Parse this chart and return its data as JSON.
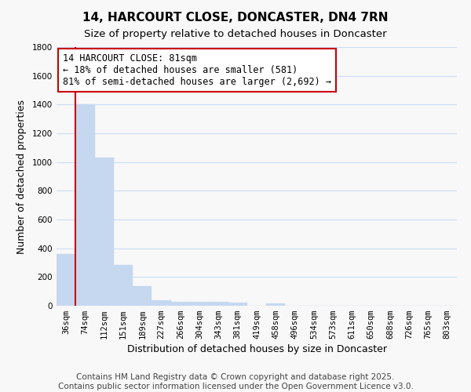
{
  "title": "14, HARCOURT CLOSE, DONCASTER, DN4 7RN",
  "subtitle": "Size of property relative to detached houses in Doncaster",
  "xlabel": "Distribution of detached houses by size in Doncaster",
  "ylabel": "Number of detached properties",
  "footer_line1": "Contains HM Land Registry data © Crown copyright and database right 2025.",
  "footer_line2": "Contains public sector information licensed under the Open Government Licence v3.0.",
  "annotation_title": "14 HARCOURT CLOSE: 81sqm",
  "annotation_line1": "← 18% of detached houses are smaller (581)",
  "annotation_line2": "81% of semi-detached houses are larger (2,692) →",
  "categories": [
    "36sqm",
    "74sqm",
    "112sqm",
    "151sqm",
    "189sqm",
    "227sqm",
    "266sqm",
    "304sqm",
    "343sqm",
    "381sqm",
    "419sqm",
    "458sqm",
    "496sqm",
    "534sqm",
    "573sqm",
    "611sqm",
    "650sqm",
    "688sqm",
    "726sqm",
    "765sqm",
    "803sqm"
  ],
  "values": [
    360,
    1400,
    1030,
    285,
    135,
    40,
    30,
    30,
    25,
    20,
    0,
    15,
    0,
    0,
    0,
    0,
    0,
    0,
    0,
    0,
    0
  ],
  "bar_color": "#c5d8f0",
  "vline_color": "#cc0000",
  "vline_x": 0.5,
  "annotation_box_color": "#cc0000",
  "ylim": [
    0,
    1800
  ],
  "yticks": [
    0,
    200,
    400,
    600,
    800,
    1000,
    1200,
    1400,
    1600,
    1800
  ],
  "background_color": "#f8f8f8",
  "grid_color": "#ccddf5",
  "title_fontsize": 11,
  "subtitle_fontsize": 9.5,
  "axis_label_fontsize": 9,
  "tick_fontsize": 7.5,
  "annotation_fontsize": 8.5,
  "footer_fontsize": 7.5
}
